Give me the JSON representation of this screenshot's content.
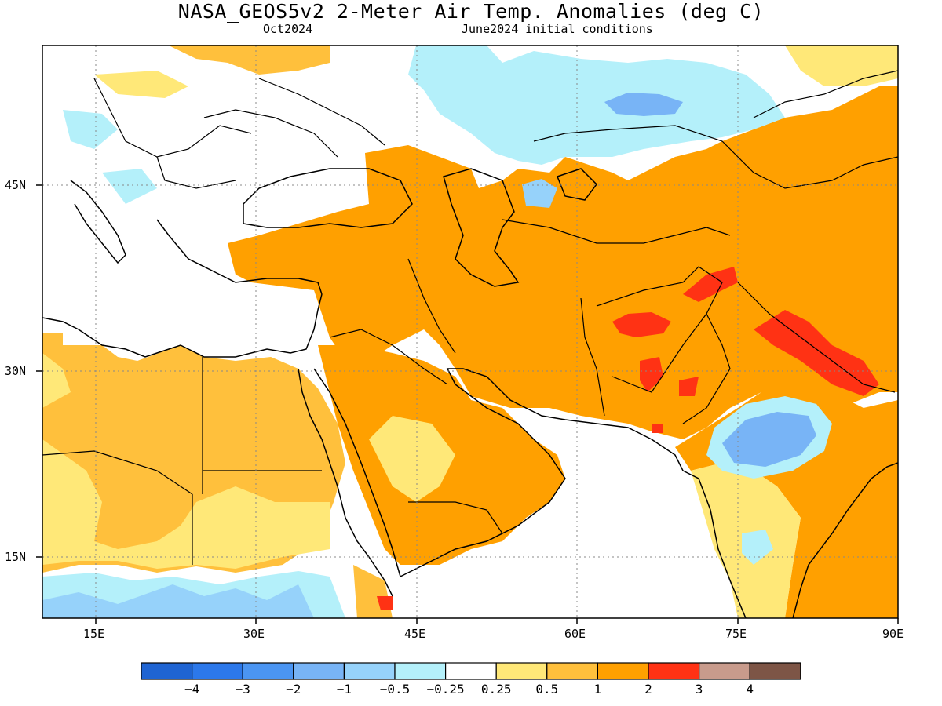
{
  "header": {
    "title": "NASA_GEOS5v2 2-Meter Air Temp. Anomalies (deg C)",
    "subtitle_left": "Oct2024",
    "subtitle_right": "June2024 initial conditions"
  },
  "axes": {
    "lat_labels": [
      "45N",
      "30N",
      "15N"
    ],
    "lon_labels": [
      "15E",
      "30E",
      "45E",
      "60E",
      "75E",
      "90E"
    ]
  },
  "legend": {
    "colors": [
      "#1f64d2",
      "#2c78ea",
      "#4b95f2",
      "#78b4f6",
      "#96d2fa",
      "#b4f0fa",
      "#ffffff",
      "#ffe878",
      "#ffc03c",
      "#ffa000",
      "#ff3214",
      "#c89b8c",
      "#7d5546"
    ],
    "labels": [
      "−4",
      "−3",
      "−2",
      "−1",
      "−0.5",
      "−0.25",
      "0.25",
      "0.5",
      "1",
      "2",
      "3",
      "4"
    ]
  },
  "palette": {
    "light_blue": "#b4f0fa",
    "mid_blue": "#96d2fa",
    "blue": "#78b4f6",
    "deep_blue": "#4b95f2",
    "light_orange": "#ffe878",
    "orange": "#ffc03c",
    "dark_orange": "#ffa000",
    "red": "#ff3214"
  }
}
